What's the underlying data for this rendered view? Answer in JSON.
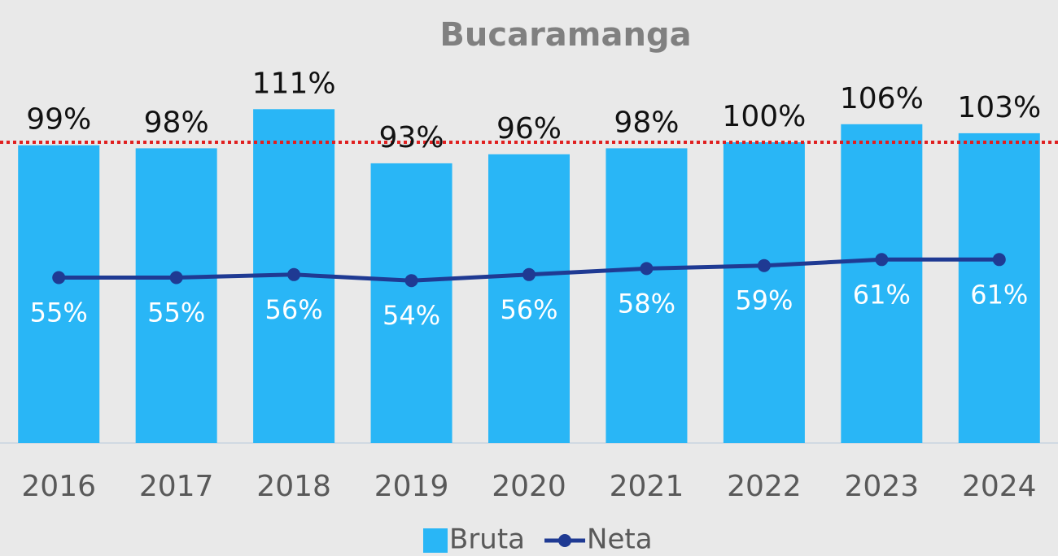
{
  "chart_data": {
    "type": "bar_line",
    "title": "Bucaramanga",
    "categories": [
      "2016",
      "2017",
      "2018",
      "2019",
      "2020",
      "2021",
      "2022",
      "2023",
      "2024"
    ],
    "series": [
      {
        "name": "Bruta",
        "type": "bar",
        "color": "#29b6f6",
        "values": [
          99,
          98,
          111,
          93,
          96,
          98,
          100,
          106,
          103
        ],
        "value_labels": [
          "99%",
          "98%",
          "111%",
          "93%",
          "96%",
          "98%",
          "100%",
          "106%",
          "103%"
        ]
      },
      {
        "name": "Neta",
        "type": "line",
        "color": "#1f3a93",
        "values": [
          55,
          55,
          56,
          54,
          56,
          58,
          59,
          61,
          61
        ],
        "value_labels": [
          "55%",
          "55%",
          "56%",
          "54%",
          "56%",
          "58%",
          "59%",
          "61%",
          "61%"
        ]
      }
    ],
    "reference_line": {
      "value": 100,
      "color": "#e02020"
    },
    "ylim": [
      0,
      120
    ],
    "legend": "bottom"
  }
}
